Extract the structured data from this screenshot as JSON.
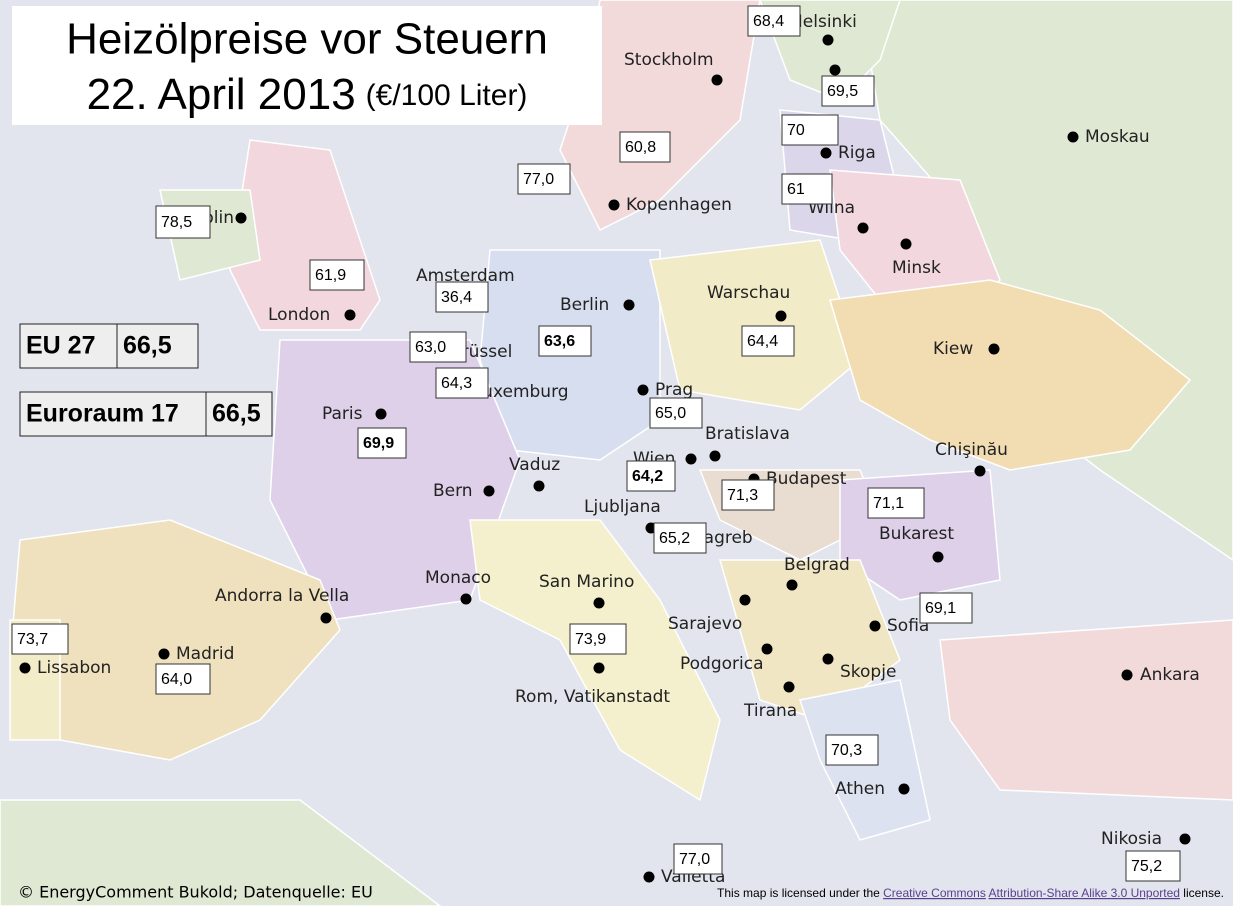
{
  "title": {
    "line1": "Heizölpreise vor Steuern",
    "date": "22. April 2013",
    "unit": "(€/100 Liter)"
  },
  "cities": [
    "Helsinki",
    "Stockholm",
    "Riga",
    "Moskau",
    "Kopenhagen",
    "Wilna",
    "Minsk",
    "Dublin",
    "Amsterdam",
    "London",
    "Berlin",
    "Warschau",
    "Brüssel",
    "Kiew",
    "Luxemburg",
    "Prag",
    "Paris",
    "Bratislava",
    "Wien",
    "Budapest",
    "Chişinău",
    "Vaduz",
    "Bern",
    "Ljubljana",
    "Zagreb",
    "Bukarest",
    "Belgrad",
    "Monaco",
    "San Marino",
    "Andorra la Vella",
    "Sarajevo",
    "Sofia",
    "Madrid",
    "Lissabon",
    "Podgorica",
    "Skopje",
    "Rom, Vatikanstadt",
    "Ankara",
    "Tirana",
    "Athen",
    "Nikosia",
    "Valletta"
  ],
  "prices": [
    "68,4",
    "69,5",
    "70",
    "61",
    "60,8",
    "77,0",
    "78,5",
    "61,9",
    "36,4",
    "63,0",
    "63,6",
    "64,4",
    "64,3",
    "65,0",
    "69,9",
    "64,2",
    "71,3",
    "71,1",
    "65,2",
    "69,1",
    "73,7",
    "73,9",
    "64,0",
    "70,3",
    "77,0",
    "75,2"
  ],
  "summary": [
    {
      "label": "EU 27",
      "value": "66,5"
    },
    {
      "label": "Euroraum 17",
      "value": "66,5"
    }
  ],
  "footer": {
    "credit": "© EnergyComment Bukold; Datenquelle: EU",
    "license": {
      "prefix": "This map is licensed under the ",
      "link1": "Creative Commons",
      "link2": "Attribution-Share Alike 3.0 Unported",
      "suffix": " license."
    }
  }
}
